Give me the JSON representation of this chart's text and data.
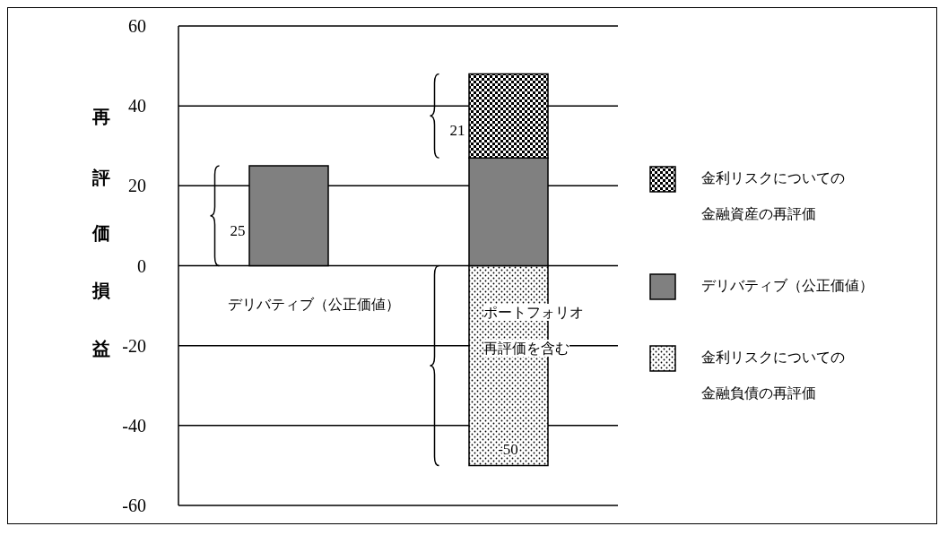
{
  "chart_data": {
    "type": "bar",
    "ylabel": "再評価損益",
    "categories": [
      null,
      null
    ],
    "stacked": true,
    "series": [
      {
        "name": "金利リスクについての金融負債の再評価",
        "color": "#000000",
        "values": [
          null,
          -50
        ],
        "value_labels": [
          null,
          "-50"
        ]
      },
      {
        "name": "デリバティブ（公正価値）",
        "color": "#808080",
        "values": [
          25,
          27
        ],
        "value_labels": [
          "25",
          null
        ]
      },
      {
        "name": "金利リスクについての金融資産の再評価",
        "color": "#000000",
        "values": [
          null,
          21
        ],
        "value_labels": [
          null,
          "21"
        ]
      }
    ],
    "ylim": [
      -60,
      60
    ],
    "yticks": [
      -60,
      -40,
      -20,
      0,
      20,
      40,
      60
    ],
    "grid": "y",
    "legend": "right",
    "annotations": [
      "デリバティブ（公正価値）",
      "ポートフォリオ再評価を含む"
    ]
  }
}
